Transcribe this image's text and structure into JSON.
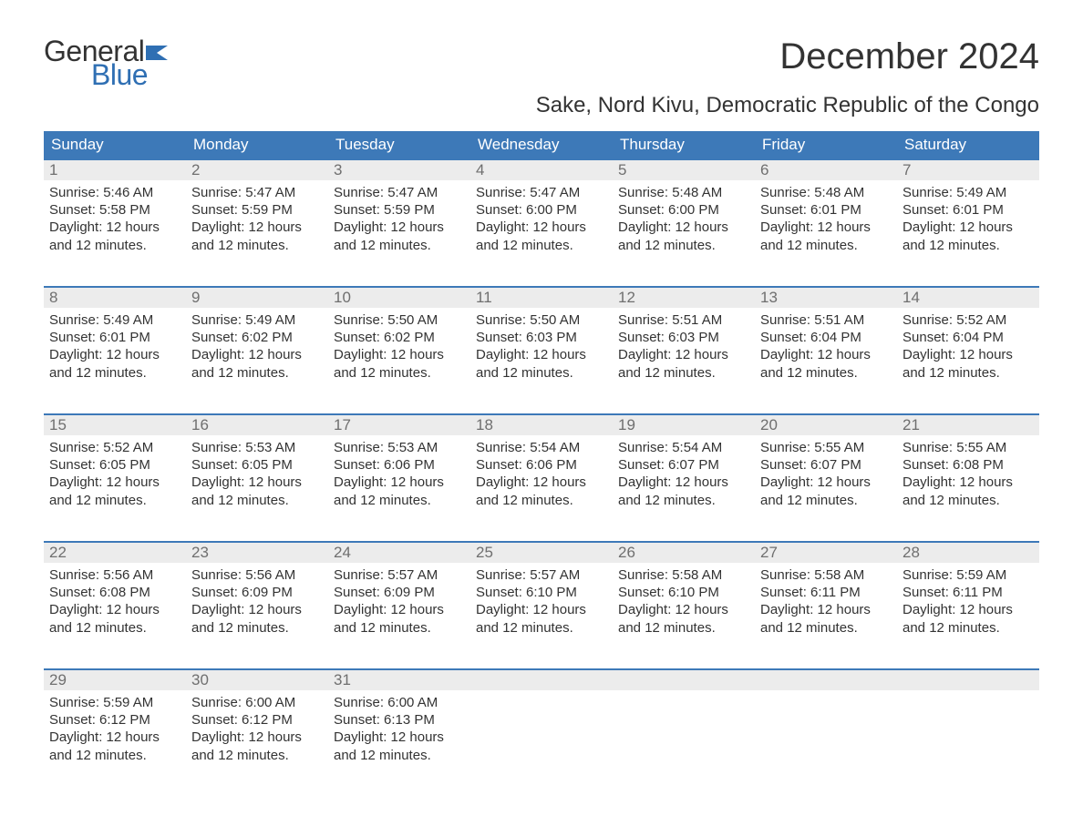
{
  "logo": {
    "word1": "General",
    "word2": "Blue",
    "flag_color": "#2f6fb3"
  },
  "title": "December 2024",
  "subtitle": "Sake, Nord Kivu, Democratic Republic of the Congo",
  "colors": {
    "header_bg": "#3d79b8",
    "header_text": "#ffffff",
    "daynum_bg": "#ececec",
    "daynum_text": "#6f6f6f",
    "body_text": "#333333",
    "week_border": "#3d79b8",
    "page_bg": "#ffffff",
    "logo_blue": "#2f6fb3"
  },
  "typography": {
    "title_fontsize": 40,
    "subtitle_fontsize": 24,
    "header_fontsize": 17,
    "daynum_fontsize": 17,
    "body_fontsize": 15,
    "logo_fontsize": 32
  },
  "weekdays": [
    "Sunday",
    "Monday",
    "Tuesday",
    "Wednesday",
    "Thursday",
    "Friday",
    "Saturday"
  ],
  "weeks": [
    [
      {
        "n": "1",
        "sr": "Sunrise: 5:46 AM",
        "ss": "Sunset: 5:58 PM",
        "d1": "Daylight: 12 hours",
        "d2": "and 12 minutes."
      },
      {
        "n": "2",
        "sr": "Sunrise: 5:47 AM",
        "ss": "Sunset: 5:59 PM",
        "d1": "Daylight: 12 hours",
        "d2": "and 12 minutes."
      },
      {
        "n": "3",
        "sr": "Sunrise: 5:47 AM",
        "ss": "Sunset: 5:59 PM",
        "d1": "Daylight: 12 hours",
        "d2": "and 12 minutes."
      },
      {
        "n": "4",
        "sr": "Sunrise: 5:47 AM",
        "ss": "Sunset: 6:00 PM",
        "d1": "Daylight: 12 hours",
        "d2": "and 12 minutes."
      },
      {
        "n": "5",
        "sr": "Sunrise: 5:48 AM",
        "ss": "Sunset: 6:00 PM",
        "d1": "Daylight: 12 hours",
        "d2": "and 12 minutes."
      },
      {
        "n": "6",
        "sr": "Sunrise: 5:48 AM",
        "ss": "Sunset: 6:01 PM",
        "d1": "Daylight: 12 hours",
        "d2": "and 12 minutes."
      },
      {
        "n": "7",
        "sr": "Sunrise: 5:49 AM",
        "ss": "Sunset: 6:01 PM",
        "d1": "Daylight: 12 hours",
        "d2": "and 12 minutes."
      }
    ],
    [
      {
        "n": "8",
        "sr": "Sunrise: 5:49 AM",
        "ss": "Sunset: 6:01 PM",
        "d1": "Daylight: 12 hours",
        "d2": "and 12 minutes."
      },
      {
        "n": "9",
        "sr": "Sunrise: 5:49 AM",
        "ss": "Sunset: 6:02 PM",
        "d1": "Daylight: 12 hours",
        "d2": "and 12 minutes."
      },
      {
        "n": "10",
        "sr": "Sunrise: 5:50 AM",
        "ss": "Sunset: 6:02 PM",
        "d1": "Daylight: 12 hours",
        "d2": "and 12 minutes."
      },
      {
        "n": "11",
        "sr": "Sunrise: 5:50 AM",
        "ss": "Sunset: 6:03 PM",
        "d1": "Daylight: 12 hours",
        "d2": "and 12 minutes."
      },
      {
        "n": "12",
        "sr": "Sunrise: 5:51 AM",
        "ss": "Sunset: 6:03 PM",
        "d1": "Daylight: 12 hours",
        "d2": "and 12 minutes."
      },
      {
        "n": "13",
        "sr": "Sunrise: 5:51 AM",
        "ss": "Sunset: 6:04 PM",
        "d1": "Daylight: 12 hours",
        "d2": "and 12 minutes."
      },
      {
        "n": "14",
        "sr": "Sunrise: 5:52 AM",
        "ss": "Sunset: 6:04 PM",
        "d1": "Daylight: 12 hours",
        "d2": "and 12 minutes."
      }
    ],
    [
      {
        "n": "15",
        "sr": "Sunrise: 5:52 AM",
        "ss": "Sunset: 6:05 PM",
        "d1": "Daylight: 12 hours",
        "d2": "and 12 minutes."
      },
      {
        "n": "16",
        "sr": "Sunrise: 5:53 AM",
        "ss": "Sunset: 6:05 PM",
        "d1": "Daylight: 12 hours",
        "d2": "and 12 minutes."
      },
      {
        "n": "17",
        "sr": "Sunrise: 5:53 AM",
        "ss": "Sunset: 6:06 PM",
        "d1": "Daylight: 12 hours",
        "d2": "and 12 minutes."
      },
      {
        "n": "18",
        "sr": "Sunrise: 5:54 AM",
        "ss": "Sunset: 6:06 PM",
        "d1": "Daylight: 12 hours",
        "d2": "and 12 minutes."
      },
      {
        "n": "19",
        "sr": "Sunrise: 5:54 AM",
        "ss": "Sunset: 6:07 PM",
        "d1": "Daylight: 12 hours",
        "d2": "and 12 minutes."
      },
      {
        "n": "20",
        "sr": "Sunrise: 5:55 AM",
        "ss": "Sunset: 6:07 PM",
        "d1": "Daylight: 12 hours",
        "d2": "and 12 minutes."
      },
      {
        "n": "21",
        "sr": "Sunrise: 5:55 AM",
        "ss": "Sunset: 6:08 PM",
        "d1": "Daylight: 12 hours",
        "d2": "and 12 minutes."
      }
    ],
    [
      {
        "n": "22",
        "sr": "Sunrise: 5:56 AM",
        "ss": "Sunset: 6:08 PM",
        "d1": "Daylight: 12 hours",
        "d2": "and 12 minutes."
      },
      {
        "n": "23",
        "sr": "Sunrise: 5:56 AM",
        "ss": "Sunset: 6:09 PM",
        "d1": "Daylight: 12 hours",
        "d2": "and 12 minutes."
      },
      {
        "n": "24",
        "sr": "Sunrise: 5:57 AM",
        "ss": "Sunset: 6:09 PM",
        "d1": "Daylight: 12 hours",
        "d2": "and 12 minutes."
      },
      {
        "n": "25",
        "sr": "Sunrise: 5:57 AM",
        "ss": "Sunset: 6:10 PM",
        "d1": "Daylight: 12 hours",
        "d2": "and 12 minutes."
      },
      {
        "n": "26",
        "sr": "Sunrise: 5:58 AM",
        "ss": "Sunset: 6:10 PM",
        "d1": "Daylight: 12 hours",
        "d2": "and 12 minutes."
      },
      {
        "n": "27",
        "sr": "Sunrise: 5:58 AM",
        "ss": "Sunset: 6:11 PM",
        "d1": "Daylight: 12 hours",
        "d2": "and 12 minutes."
      },
      {
        "n": "28",
        "sr": "Sunrise: 5:59 AM",
        "ss": "Sunset: 6:11 PM",
        "d1": "Daylight: 12 hours",
        "d2": "and 12 minutes."
      }
    ],
    [
      {
        "n": "29",
        "sr": "Sunrise: 5:59 AM",
        "ss": "Sunset: 6:12 PM",
        "d1": "Daylight: 12 hours",
        "d2": "and 12 minutes."
      },
      {
        "n": "30",
        "sr": "Sunrise: 6:00 AM",
        "ss": "Sunset: 6:12 PM",
        "d1": "Daylight: 12 hours",
        "d2": "and 12 minutes."
      },
      {
        "n": "31",
        "sr": "Sunrise: 6:00 AM",
        "ss": "Sunset: 6:13 PM",
        "d1": "Daylight: 12 hours",
        "d2": "and 12 minutes."
      },
      null,
      null,
      null,
      null
    ]
  ]
}
